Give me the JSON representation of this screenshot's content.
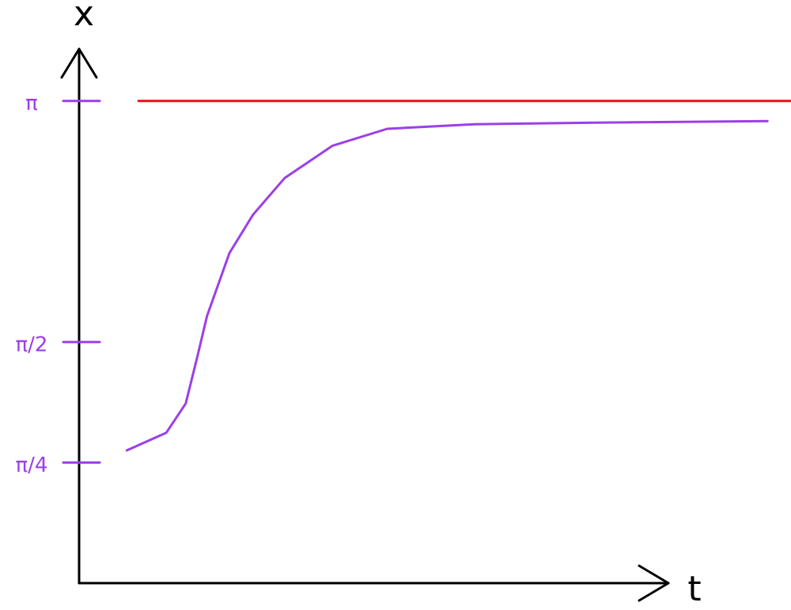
{
  "chart_data": {
    "type": "line",
    "x_label": "t",
    "y_label": "x",
    "xlim": [
      0,
      10
    ],
    "ylim": [
      0,
      3.48
    ],
    "yticks": [
      {
        "value": 0.7854,
        "label": "π/4"
      },
      {
        "value": 1.5708,
        "label": "π/2"
      },
      {
        "value": 3.1416,
        "label": "π"
      }
    ],
    "tick_color": "#9b3fe8",
    "series": [
      {
        "color": "#9b3fe8",
        "x": [
          0.81,
          1.48,
          1.81,
          2.01,
          2.17,
          2.55,
          2.95,
          3.49,
          4.3,
          5.23,
          6.71,
          8.72,
          11.68
        ],
        "values": [
          0.865,
          0.98,
          1.17,
          1.48,
          1.74,
          2.15,
          2.4,
          2.64,
          2.85,
          2.96,
          2.99,
          3.0,
          3.01
        ]
      },
      {
        "color": "#e8101a",
        "x": [
          1.01,
          12.08
        ],
        "values": [
          3.1416,
          3.1416
        ]
      }
    ]
  }
}
